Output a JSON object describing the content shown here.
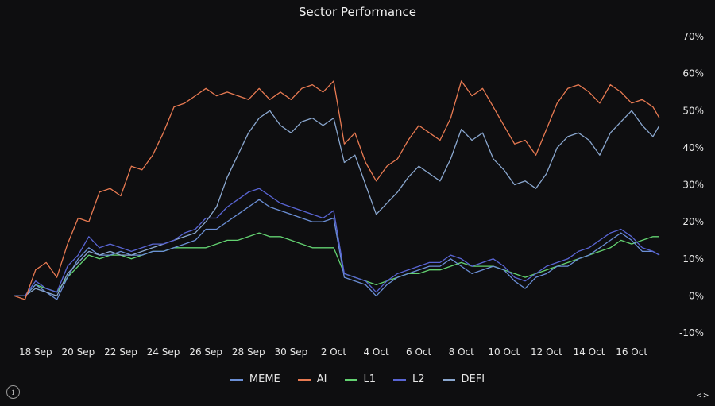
{
  "chart_data": {
    "type": "line",
    "title": "Sector Performance",
    "xlabel": "",
    "ylabel": "",
    "x_ticks": [
      "18 Sep",
      "20 Sep",
      "22 Sep",
      "24 Sep",
      "26 Sep",
      "28 Sep",
      "30 Sep",
      "2 Oct",
      "4 Oct",
      "6 Oct",
      "8 Oct",
      "10 Oct",
      "12 Oct",
      "14 Oct",
      "16 Oct"
    ],
    "y_ticks": [
      "-10%",
      "0%",
      "10%",
      "20%",
      "30%",
      "40%",
      "50%",
      "60%",
      "70%"
    ],
    "ylim": [
      -10,
      70
    ],
    "xlim_days": [
      0,
      30.6
    ],
    "x_unit_note": "",
    "legend_position": "bottom",
    "y_axis_position": "right",
    "zero_line": true,
    "series": [
      {
        "name": "MEME",
        "color": "#6b8fd6",
        "points": [
          [
            0,
            0
          ],
          [
            0.5,
            0
          ],
          [
            1,
            3
          ],
          [
            1.5,
            1
          ],
          [
            2,
            -1
          ],
          [
            2.5,
            5
          ],
          [
            3,
            10
          ],
          [
            3.5,
            13
          ],
          [
            4,
            11
          ],
          [
            4.5,
            11
          ],
          [
            5,
            12
          ],
          [
            5.5,
            11
          ],
          [
            6,
            11
          ],
          [
            6.5,
            12
          ],
          [
            7,
            12
          ],
          [
            7.5,
            13
          ],
          [
            8,
            14
          ],
          [
            8.5,
            15
          ],
          [
            9,
            18
          ],
          [
            9.5,
            18
          ],
          [
            10,
            20
          ],
          [
            10.5,
            22
          ],
          [
            11,
            24
          ],
          [
            11.5,
            26
          ],
          [
            12,
            24
          ],
          [
            12.5,
            23
          ],
          [
            13,
            22
          ],
          [
            13.5,
            21
          ],
          [
            14,
            20
          ],
          [
            14.5,
            20
          ],
          [
            15,
            21
          ],
          [
            15.5,
            5
          ],
          [
            16,
            4
          ],
          [
            16.5,
            3
          ],
          [
            17,
            0
          ],
          [
            17.5,
            3
          ],
          [
            18,
            5
          ],
          [
            18.5,
            6
          ],
          [
            19,
            7
          ],
          [
            19.5,
            8
          ],
          [
            20,
            8
          ],
          [
            20.5,
            10
          ],
          [
            21,
            8
          ],
          [
            21.5,
            6
          ],
          [
            22,
            7
          ],
          [
            22.5,
            8
          ],
          [
            23,
            7
          ],
          [
            23.5,
            4
          ],
          [
            24,
            2
          ],
          [
            24.5,
            5
          ],
          [
            25,
            6
          ],
          [
            25.5,
            8
          ],
          [
            26,
            8
          ],
          [
            26.5,
            10
          ],
          [
            27,
            11
          ],
          [
            27.5,
            13
          ],
          [
            28,
            15
          ],
          [
            28.5,
            17
          ],
          [
            29,
            15
          ],
          [
            29.5,
            12
          ],
          [
            30,
            12
          ],
          [
            30.3,
            11
          ]
        ]
      },
      {
        "name": "AI",
        "color": "#e87a52",
        "points": [
          [
            0,
            0
          ],
          [
            0.5,
            -1
          ],
          [
            1,
            7
          ],
          [
            1.5,
            9
          ],
          [
            2,
            5
          ],
          [
            2.5,
            14
          ],
          [
            3,
            21
          ],
          [
            3.5,
            20
          ],
          [
            4,
            28
          ],
          [
            4.5,
            29
          ],
          [
            5,
            27
          ],
          [
            5.5,
            35
          ],
          [
            6,
            34
          ],
          [
            6.5,
            38
          ],
          [
            7,
            44
          ],
          [
            7.5,
            51
          ],
          [
            8,
            52
          ],
          [
            8.5,
            54
          ],
          [
            9,
            56
          ],
          [
            9.5,
            54
          ],
          [
            10,
            55
          ],
          [
            10.5,
            54
          ],
          [
            11,
            53
          ],
          [
            11.5,
            56
          ],
          [
            12,
            53
          ],
          [
            12.5,
            55
          ],
          [
            13,
            53
          ],
          [
            13.5,
            56
          ],
          [
            14,
            57
          ],
          [
            14.5,
            55
          ],
          [
            15,
            58
          ],
          [
            15.5,
            41
          ],
          [
            16,
            44
          ],
          [
            16.5,
            36
          ],
          [
            17,
            31
          ],
          [
            17.5,
            35
          ],
          [
            18,
            37
          ],
          [
            18.5,
            42
          ],
          [
            19,
            46
          ],
          [
            19.5,
            44
          ],
          [
            20,
            42
          ],
          [
            20.5,
            48
          ],
          [
            21,
            58
          ],
          [
            21.5,
            54
          ],
          [
            22,
            56
          ],
          [
            22.5,
            51
          ],
          [
            23,
            46
          ],
          [
            23.5,
            41
          ],
          [
            24,
            42
          ],
          [
            24.5,
            38
          ],
          [
            25,
            45
          ],
          [
            25.5,
            52
          ],
          [
            26,
            56
          ],
          [
            26.5,
            57
          ],
          [
            27,
            55
          ],
          [
            27.5,
            52
          ],
          [
            28,
            57
          ],
          [
            28.5,
            55
          ],
          [
            29,
            52
          ],
          [
            29.5,
            53
          ],
          [
            30,
            51
          ],
          [
            30.3,
            48
          ]
        ]
      },
      {
        "name": "L1",
        "color": "#63d271",
        "points": [
          [
            0,
            0
          ],
          [
            0.5,
            0
          ],
          [
            1,
            3
          ],
          [
            1.5,
            2
          ],
          [
            2,
            1
          ],
          [
            2.5,
            5
          ],
          [
            3,
            8
          ],
          [
            3.5,
            11
          ],
          [
            4,
            10
          ],
          [
            4.5,
            11
          ],
          [
            5,
            11
          ],
          [
            5.5,
            10
          ],
          [
            6,
            11
          ],
          [
            6.5,
            12
          ],
          [
            7,
            12
          ],
          [
            7.5,
            13
          ],
          [
            8,
            13
          ],
          [
            8.5,
            13
          ],
          [
            9,
            13
          ],
          [
            9.5,
            14
          ],
          [
            10,
            15
          ],
          [
            10.5,
            15
          ],
          [
            11,
            16
          ],
          [
            11.5,
            17
          ],
          [
            12,
            16
          ],
          [
            12.5,
            16
          ],
          [
            13,
            15
          ],
          [
            13.5,
            14
          ],
          [
            14,
            13
          ],
          [
            14.5,
            13
          ],
          [
            15,
            13
          ],
          [
            15.5,
            6
          ],
          [
            16,
            5
          ],
          [
            16.5,
            4
          ],
          [
            17,
            3
          ],
          [
            17.5,
            4
          ],
          [
            18,
            5
          ],
          [
            18.5,
            6
          ],
          [
            19,
            6
          ],
          [
            19.5,
            7
          ],
          [
            20,
            7
          ],
          [
            20.5,
            8
          ],
          [
            21,
            9
          ],
          [
            21.5,
            8
          ],
          [
            22,
            8
          ],
          [
            22.5,
            8
          ],
          [
            23,
            7
          ],
          [
            23.5,
            6
          ],
          [
            24,
            5
          ],
          [
            24.5,
            6
          ],
          [
            25,
            7
          ],
          [
            25.5,
            8
          ],
          [
            26,
            9
          ],
          [
            26.5,
            10
          ],
          [
            27,
            11
          ],
          [
            27.5,
            12
          ],
          [
            28,
            13
          ],
          [
            28.5,
            15
          ],
          [
            29,
            14
          ],
          [
            29.5,
            15
          ],
          [
            30,
            16
          ],
          [
            30.3,
            16
          ]
        ]
      },
      {
        "name": "L2",
        "color": "#5965d4",
        "points": [
          [
            0,
            0
          ],
          [
            0.5,
            0
          ],
          [
            1,
            4
          ],
          [
            1.5,
            2
          ],
          [
            2,
            1
          ],
          [
            2.5,
            8
          ],
          [
            3,
            11
          ],
          [
            3.5,
            16
          ],
          [
            4,
            13
          ],
          [
            4.5,
            14
          ],
          [
            5,
            13
          ],
          [
            5.5,
            12
          ],
          [
            6,
            13
          ],
          [
            6.5,
            14
          ],
          [
            7,
            14
          ],
          [
            7.5,
            15
          ],
          [
            8,
            17
          ],
          [
            8.5,
            18
          ],
          [
            9,
            21
          ],
          [
            9.5,
            21
          ],
          [
            10,
            24
          ],
          [
            10.5,
            26
          ],
          [
            11,
            28
          ],
          [
            11.5,
            29
          ],
          [
            12,
            27
          ],
          [
            12.5,
            25
          ],
          [
            13,
            24
          ],
          [
            13.5,
            23
          ],
          [
            14,
            22
          ],
          [
            14.5,
            21
          ],
          [
            15,
            23
          ],
          [
            15.5,
            6
          ],
          [
            16,
            5
          ],
          [
            16.5,
            4
          ],
          [
            17,
            1
          ],
          [
            17.5,
            4
          ],
          [
            18,
            6
          ],
          [
            18.5,
            7
          ],
          [
            19,
            8
          ],
          [
            19.5,
            9
          ],
          [
            20,
            9
          ],
          [
            20.5,
            11
          ],
          [
            21,
            10
          ],
          [
            21.5,
            8
          ],
          [
            22,
            9
          ],
          [
            22.5,
            10
          ],
          [
            23,
            8
          ],
          [
            23.5,
            5
          ],
          [
            24,
            4
          ],
          [
            24.5,
            6
          ],
          [
            25,
            8
          ],
          [
            25.5,
            9
          ],
          [
            26,
            10
          ],
          [
            26.5,
            12
          ],
          [
            27,
            13
          ],
          [
            27.5,
            15
          ],
          [
            28,
            17
          ],
          [
            28.5,
            18
          ],
          [
            29,
            16
          ],
          [
            29.5,
            13
          ],
          [
            30,
            12
          ],
          [
            30.3,
            11
          ]
        ]
      },
      {
        "name": "DEFI",
        "color": "#8aa7cf",
        "points": [
          [
            0,
            0
          ],
          [
            0.5,
            0
          ],
          [
            1,
            2
          ],
          [
            1.5,
            1
          ],
          [
            2,
            0
          ],
          [
            2.5,
            6
          ],
          [
            3,
            9
          ],
          [
            3.5,
            12
          ],
          [
            4,
            11
          ],
          [
            4.5,
            12
          ],
          [
            5,
            11
          ],
          [
            5.5,
            11
          ],
          [
            6,
            12
          ],
          [
            6.5,
            13
          ],
          [
            7,
            14
          ],
          [
            7.5,
            15
          ],
          [
            8,
            16
          ],
          [
            8.5,
            17
          ],
          [
            9,
            20
          ],
          [
            9.5,
            24
          ],
          [
            10,
            32
          ],
          [
            10.5,
            38
          ],
          [
            11,
            44
          ],
          [
            11.5,
            48
          ],
          [
            12,
            50
          ],
          [
            12.5,
            46
          ],
          [
            13,
            44
          ],
          [
            13.5,
            47
          ],
          [
            14,
            48
          ],
          [
            14.5,
            46
          ],
          [
            15,
            48
          ],
          [
            15.5,
            36
          ],
          [
            16,
            38
          ],
          [
            16.5,
            30
          ],
          [
            17,
            22
          ],
          [
            17.5,
            25
          ],
          [
            18,
            28
          ],
          [
            18.5,
            32
          ],
          [
            19,
            35
          ],
          [
            19.5,
            33
          ],
          [
            20,
            31
          ],
          [
            20.5,
            37
          ],
          [
            21,
            45
          ],
          [
            21.5,
            42
          ],
          [
            22,
            44
          ],
          [
            22.5,
            37
          ],
          [
            23,
            34
          ],
          [
            23.5,
            30
          ],
          [
            24,
            31
          ],
          [
            24.5,
            29
          ],
          [
            25,
            33
          ],
          [
            25.5,
            40
          ],
          [
            26,
            43
          ],
          [
            26.5,
            44
          ],
          [
            27,
            42
          ],
          [
            27.5,
            38
          ],
          [
            28,
            44
          ],
          [
            28.5,
            47
          ],
          [
            29,
            50
          ],
          [
            29.5,
            46
          ],
          [
            30,
            43
          ],
          [
            30.3,
            46
          ]
        ]
      }
    ]
  },
  "controls": {
    "info_glyph": "i",
    "prev_glyph": "<",
    "next_glyph": ">"
  }
}
